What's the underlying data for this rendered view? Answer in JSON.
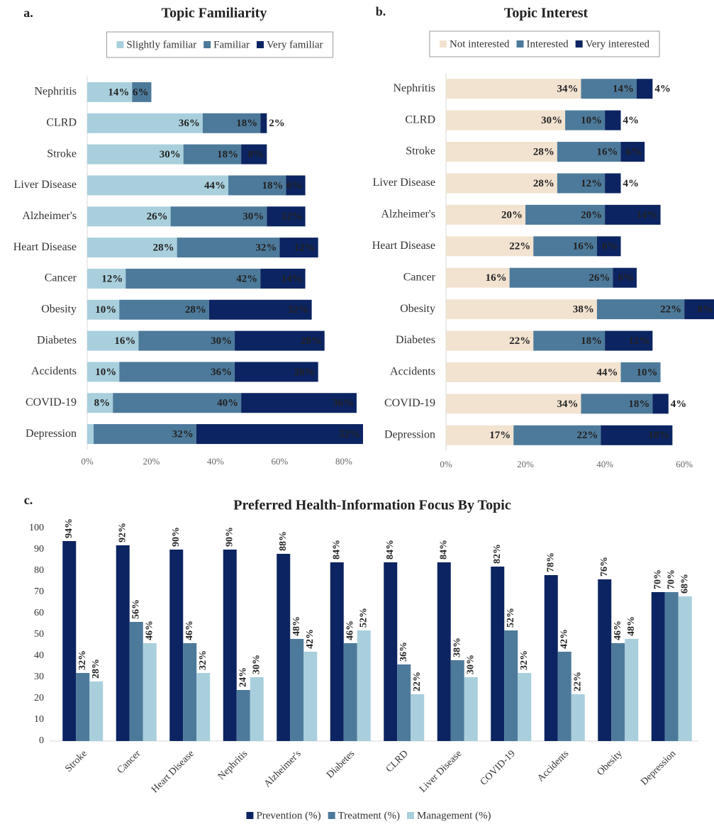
{
  "chart_data": [
    {
      "type": "bar",
      "orientation": "horizontal",
      "stacked": true,
      "panel_label": "a.",
      "title": "Topic Familiarity",
      "legend": "top",
      "categories": [
        "Nephritis",
        "CLRD",
        "Stroke",
        "Liver Disease",
        "Alzheimer's",
        "Heart Disease",
        "Cancer",
        "Obesity",
        "Diabetes",
        "Accidents",
        "COVID-19",
        "Depression"
      ],
      "series": [
        {
          "name": "Slightly familiar",
          "color": "#a9cfdd",
          "values": [
            14,
            36,
            30,
            44,
            26,
            28,
            12,
            10,
            16,
            10,
            8,
            2
          ],
          "value_labels": [
            "14%",
            "36%",
            "30%",
            "44%",
            "26%",
            "28%",
            "12%",
            "10%",
            "16%",
            "10%",
            "8%",
            "2%"
          ]
        },
        {
          "name": "Familiar",
          "color": "#4d7a9b",
          "values": [
            6,
            18,
            18,
            18,
            30,
            32,
            42,
            28,
            30,
            36,
            40,
            32
          ],
          "value_labels": [
            "6%",
            "18%",
            "18%",
            "18%",
            "30%",
            "32%",
            "42%",
            "28%",
            "30%",
            "36%",
            "40%",
            "32%"
          ]
        },
        {
          "name": "Very familiar",
          "color": "#0c2461",
          "values": [
            null,
            2,
            8,
            6,
            12,
            12,
            14,
            32,
            28,
            26,
            36,
            52
          ],
          "value_labels": [
            null,
            "2%",
            "8%",
            "6%",
            "12%",
            "12%",
            "14%",
            "32%",
            "28%",
            "26%",
            "36%",
            "52%"
          ]
        }
      ],
      "xlim": [
        0,
        86
      ],
      "xticks": [
        {
          "value": 0,
          "label": "0%"
        },
        {
          "value": 20,
          "label": "20%"
        },
        {
          "value": 40,
          "label": "40%"
        },
        {
          "value": 60,
          "label": "60%"
        },
        {
          "value": 80,
          "label": "80%"
        }
      ],
      "grid": false
    },
    {
      "type": "bar",
      "orientation": "horizontal",
      "stacked": true,
      "panel_label": "b.",
      "title": "Topic Interest",
      "legend": "top",
      "categories": [
        "Nephritis",
        "CLRD",
        "Stroke",
        "Liver Disease",
        "Alzheimer's",
        "Heart Disease",
        "Cancer",
        "Obesity",
        "Diabetes",
        "Accidents",
        "COVID-19",
        "Depression"
      ],
      "series": [
        {
          "name": "Not interested",
          "color": "#f2e3d1",
          "values": [
            34,
            30,
            28,
            28,
            20,
            22,
            16,
            38,
            22,
            44,
            34,
            17
          ],
          "value_labels": [
            "34%",
            "30%",
            "28%",
            "28%",
            "20%",
            "22%",
            "16%",
            "38%",
            "22%",
            "44%",
            "34%",
            "17%"
          ]
        },
        {
          "name": "Interested",
          "color": "#4d7a9b",
          "values": [
            14,
            10,
            16,
            12,
            20,
            16,
            26,
            22,
            18,
            10,
            18,
            22
          ],
          "value_labels": [
            "14%",
            "10%",
            "16%",
            "12%",
            "20%",
            "16%",
            "26%",
            "22%",
            "18%",
            "10%",
            "18%",
            "22%"
          ]
        },
        {
          "name": "Very interested",
          "color": "#0c2461",
          "values": [
            4,
            4,
            6,
            4,
            14,
            6,
            6,
            8,
            12,
            null,
            4,
            18
          ],
          "value_labels": [
            "4%",
            "4%",
            "6%",
            "4%",
            "14%",
            "6%",
            "6%",
            "8%",
            "12%",
            null,
            "4%",
            "18%"
          ]
        }
      ],
      "xlim": [
        0,
        68
      ],
      "xticks": [
        {
          "value": 0,
          "label": "0%"
        },
        {
          "value": 20,
          "label": "20%"
        },
        {
          "value": 40,
          "label": "40%"
        },
        {
          "value": 60,
          "label": "60%"
        }
      ],
      "grid": false
    },
    {
      "type": "bar",
      "orientation": "vertical",
      "stacked": false,
      "panel_label": "c.",
      "title": "Preferred Health-Information Focus By Topic",
      "legend": "bottom",
      "categories": [
        "Stroke",
        "Cancer",
        "Heart Disease",
        "Nephritis",
        "Alzheimer's",
        "Diabetes",
        "CLRD",
        "Liver Disease",
        "COVID-19",
        "Accidents",
        "Obesity",
        "Depression"
      ],
      "series": [
        {
          "name": "Prevention (%)",
          "color": "#0c2461",
          "values": [
            94,
            92,
            90,
            90,
            88,
            84,
            84,
            84,
            82,
            78,
            76,
            70
          ],
          "value_labels": [
            "94%",
            "92%",
            "90%",
            "90%",
            "88%",
            "84%",
            "84%",
            "84%",
            "82%",
            "78%",
            "76%",
            "70%"
          ]
        },
        {
          "name": "Treatment (%)",
          "color": "#4d7a9b",
          "values": [
            32,
            56,
            46,
            24,
            48,
            46,
            36,
            38,
            52,
            42,
            46,
            70
          ],
          "value_labels": [
            "32%",
            "56%",
            "46%",
            "24%",
            "48%",
            "46%",
            "36%",
            "38%",
            "52%",
            "42%",
            "46%",
            "70%"
          ]
        },
        {
          "name": "Management (%)",
          "color": "#a9cfdd",
          "values": [
            28,
            46,
            32,
            30,
            42,
            52,
            22,
            30,
            32,
            22,
            48,
            68
          ],
          "value_labels": [
            "28%",
            "46%",
            "32%",
            "30%",
            "42%",
            "52%",
            "22%",
            "30%",
            "32%",
            "22%",
            "48%",
            "68%"
          ]
        }
      ],
      "ylim": [
        0,
        100
      ],
      "yticks": [
        0,
        10,
        20,
        30,
        40,
        50,
        60,
        70,
        80,
        90,
        100
      ],
      "grid": false
    }
  ]
}
